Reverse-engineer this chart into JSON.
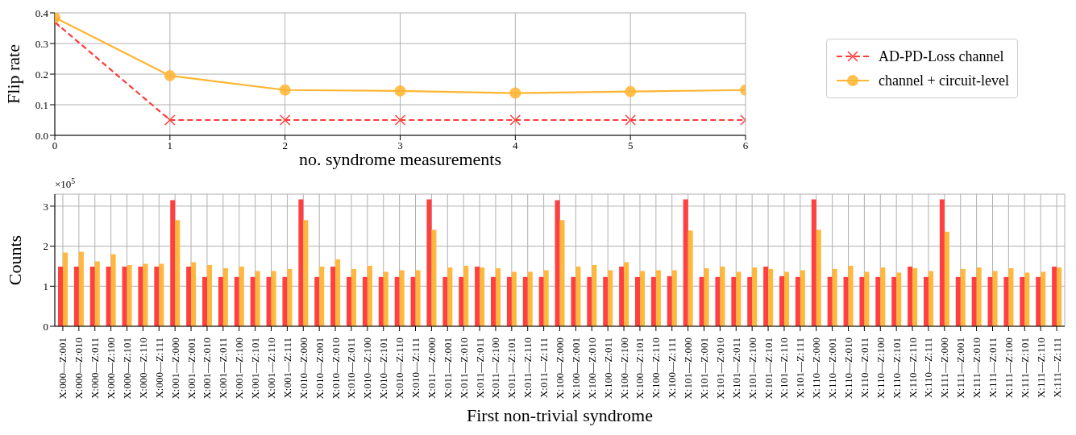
{
  "chart_data": [
    {
      "type": "line",
      "xlabel": "no. syndrome measurements",
      "ylabel": "Flip rate",
      "x": [
        0,
        1,
        2,
        3,
        4,
        5,
        6
      ],
      "xlim": [
        0,
        6
      ],
      "xticks": [
        0,
        1,
        2,
        3,
        4,
        5,
        6
      ],
      "ylim": [
        0,
        0.4
      ],
      "yticks": [
        {
          "value": 0,
          "label": "0.0"
        },
        0.1,
        0.2,
        0.3,
        0.4
      ],
      "grid": true,
      "legend": "right",
      "series": [
        {
          "name": "AD-PD-Loss channel",
          "color": "#ff3b3b",
          "marker": "cross",
          "line_style": "dashed",
          "values": [
            0.37,
            0.05,
            0.05,
            0.05,
            0.05,
            0.05,
            0.05
          ]
        },
        {
          "name": "channel + circuit-level",
          "color": "#ffb531",
          "marker": "circle",
          "line_style": "solid",
          "values": [
            0.385,
            0.195,
            0.148,
            0.145,
            0.138,
            0.143,
            0.148
          ]
        }
      ]
    },
    {
      "type": "bar",
      "xlabel": "First non-trivial syndrome",
      "ylabel": "Counts",
      "ylim": [
        0,
        3.3
      ],
      "yticks": [
        0,
        1,
        2,
        3
      ],
      "grid": true,
      "annotations": [
        "×10$^{5}$"
      ],
      "categories": [
        "X:000—Z:001",
        "X:000—Z:010",
        "X:000—Z:011",
        "X:000—Z:100",
        "X:000—Z:101",
        "X:000—Z:110",
        "X:000—Z:111",
        "X:001—Z:000",
        "X:001—Z:001",
        "X:001—Z:010",
        "X:001—Z:011",
        "X:001—Z:100",
        "X:001—Z:101",
        "X:001—Z:110",
        "X:001—Z:111",
        "X:010—Z:000",
        "X:010—Z:001",
        "X:010—Z:010",
        "X:010—Z:011",
        "X:010—Z:100",
        "X:010—Z:101",
        "X:010—Z:110",
        "X:010—Z:111",
        "X:011—Z:000",
        "X:011—Z:001",
        "X:011—Z:010",
        "X:011—Z:011",
        "X:011—Z:100",
        "X:011—Z:101",
        "X:011—Z:110",
        "X:011—Z:111",
        "X:100—Z:000",
        "X:100—Z:001",
        "X:100—Z:010",
        "X:100—Z:011",
        "X:100—Z:100",
        "X:100—Z:101",
        "X:100—Z:110",
        "X:100—Z:111",
        "X:101—Z:000",
        "X:101—Z:001",
        "X:101—Z:010",
        "X:101—Z:011",
        "X:101—Z:100",
        "X:101—Z:101",
        "X:101—Z:110",
        "X:101—Z:111",
        "X:110—Z:000",
        "X:110—Z:001",
        "X:110—Z:010",
        "X:110—Z:011",
        "X:110—Z:100",
        "X:110—Z:101",
        "X:110—Z:110",
        "X:110—Z:111",
        "X:111—Z:000",
        "X:111—Z:001",
        "X:111—Z:010",
        "X:111—Z:011",
        "X:111—Z:100",
        "X:111—Z:101",
        "X:111—Z:110",
        "X:111—Z:111"
      ],
      "series": [
        {
          "color": "#ff4040",
          "values": [
            1.49,
            1.49,
            1.49,
            1.49,
            1.49,
            1.49,
            1.49,
            3.15,
            1.49,
            1.23,
            1.23,
            1.23,
            1.23,
            1.23,
            1.23,
            3.17,
            1.23,
            1.49,
            1.23,
            1.23,
            1.23,
            1.23,
            1.23,
            3.17,
            1.23,
            1.23,
            1.49,
            1.23,
            1.23,
            1.23,
            1.23,
            3.15,
            1.23,
            1.23,
            1.23,
            1.49,
            1.23,
            1.23,
            1.25,
            3.17,
            1.23,
            1.23,
            1.23,
            1.23,
            1.49,
            1.25,
            1.23,
            3.17,
            1.23,
            1.23,
            1.23,
            1.23,
            1.23,
            1.49,
            1.23,
            3.17,
            1.23,
            1.23,
            1.23,
            1.23,
            1.23,
            1.23,
            1.49
          ]
        },
        {
          "color": "#ffb73d",
          "values": [
            1.84,
            1.86,
            1.62,
            1.8,
            1.53,
            1.56,
            1.56,
            2.65,
            1.6,
            1.53,
            1.45,
            1.49,
            1.38,
            1.38,
            1.43,
            2.65,
            1.49,
            1.67,
            1.43,
            1.51,
            1.36,
            1.4,
            1.4,
            2.41,
            1.47,
            1.51,
            1.47,
            1.45,
            1.36,
            1.36,
            1.4,
            2.65,
            1.49,
            1.53,
            1.4,
            1.6,
            1.38,
            1.4,
            1.4,
            2.39,
            1.45,
            1.49,
            1.36,
            1.47,
            1.43,
            1.36,
            1.4,
            2.41,
            1.43,
            1.51,
            1.36,
            1.47,
            1.34,
            1.45,
            1.38,
            2.36,
            1.43,
            1.47,
            1.38,
            1.45,
            1.34,
            1.36,
            1.47
          ]
        }
      ]
    }
  ]
}
